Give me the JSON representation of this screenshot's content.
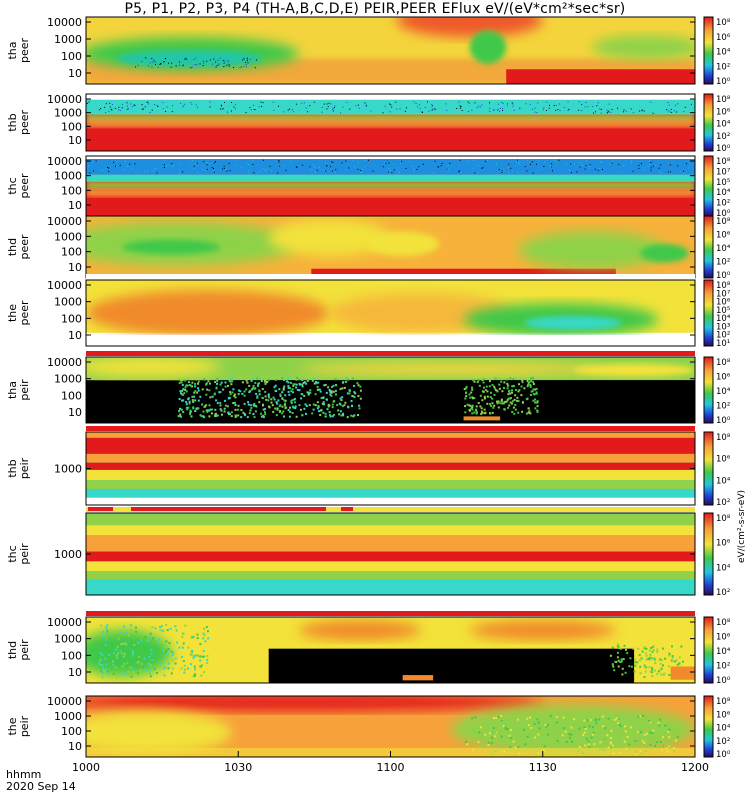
{
  "title": "P5, P1, P2, P3, P4 (TH-A,B,C,D,E) PEIR,PEER EFlux eV/(eV*cm²*sec*sr)",
  "footer": {
    "axis_label": "hhmm",
    "date": "2020 Sep 14"
  },
  "colors": {
    "red": "#e31a1c",
    "orange": "#f6a13a",
    "yellow": "#f2e23a",
    "green": "#3fc84a",
    "cyan": "#37d8c9",
    "blue": "#1e5fd6",
    "black": "#000000"
  },
  "chart_data": {
    "type": "heatmap",
    "x_axis": {
      "label": "hhmm",
      "date": "2020 Sep 14",
      "range": [
        "1000",
        "1200"
      ],
      "tick_labels": [
        "1000",
        "1030",
        "1100",
        "1130",
        "1200"
      ]
    },
    "colorbar_unit": "eV/(cm²-s-sr-eV)",
    "panels": [
      {
        "probe": "tha",
        "species": "peer",
        "ylabel": "tha\npeer",
        "yscale": "log",
        "ytick_labels": [
          "10000",
          "1000",
          "100",
          "10"
        ],
        "colorbar_ticks": [
          "10⁸",
          "10⁶",
          "10⁴",
          "10²",
          "10⁰"
        ],
        "flags": null
      },
      {
        "probe": "thb",
        "species": "peer",
        "ylabel": "thb\npeer",
        "yscale": "log",
        "ytick_labels": [
          "10000",
          "1000",
          "100",
          "10"
        ],
        "colorbar_ticks": [
          "10⁸",
          "10⁶",
          "10⁴",
          "10²",
          "10⁰"
        ],
        "flags": "white"
      },
      {
        "probe": "thc",
        "species": "peer",
        "ylabel": "thc\npeer",
        "yscale": "log",
        "ytick_labels": [
          "10000",
          "1000",
          "100",
          "10"
        ],
        "colorbar_ticks": [
          "10⁸",
          "10⁷",
          "10⁵",
          "10⁴",
          "10²",
          "10⁰"
        ],
        "flags": null
      },
      {
        "probe": "thd",
        "species": "peer",
        "ylabel": "thd\npeer",
        "yscale": "log",
        "ytick_labels": [
          "10000",
          "1000",
          "100",
          "10"
        ],
        "colorbar_ticks": [
          "10⁸",
          "10⁶",
          "10⁴",
          "10²",
          "10⁰"
        ],
        "flags": null
      },
      {
        "probe": "the",
        "species": "peer",
        "ylabel": "the\npeer",
        "yscale": "log",
        "ytick_labels": [
          "10000",
          "1000",
          "100",
          "10"
        ],
        "colorbar_ticks": [
          "10⁸",
          "10⁷",
          "10⁶",
          "10⁵",
          "10⁴",
          "10³",
          "10²",
          "10¹"
        ],
        "flags": "white"
      },
      {
        "probe": "tha",
        "species": "peir",
        "ylabel": "tha\npeir",
        "yscale": "log",
        "ytick_labels": [
          "10000",
          "1000",
          "100",
          "10"
        ],
        "colorbar_ticks": [
          "10⁸",
          "10⁶",
          "10⁴",
          "10²",
          "10⁰"
        ],
        "flags": "red"
      },
      {
        "probe": "thb",
        "species": "peir",
        "ylabel": "thb\npeir",
        "yscale": "log",
        "ytick_labels": [
          "1000"
        ],
        "colorbar_ticks": [
          "10⁸",
          "10⁶",
          "10⁴",
          "10²"
        ],
        "flags": "red"
      },
      {
        "probe": "thc",
        "species": "peir",
        "ylabel": "thc\npeir",
        "yscale": "log",
        "ytick_labels": [
          "1000"
        ],
        "colorbar_ticks": [
          "10⁸",
          "10⁶",
          "10⁴",
          "10²"
        ],
        "flags": "red-yellow"
      },
      {
        "probe": "thd",
        "species": "peir",
        "ylabel": "thd\npeir",
        "yscale": "log",
        "ytick_labels": [
          "10000",
          "1000",
          "100",
          "10"
        ],
        "colorbar_ticks": [
          "10⁸",
          "10⁶",
          "10⁴",
          "10²",
          "10⁰"
        ],
        "flags": "red"
      },
      {
        "probe": "the",
        "species": "peir",
        "ylabel": "the\npeir",
        "yscale": "log",
        "ytick_labels": [
          "10000",
          "1000",
          "100",
          "10"
        ],
        "colorbar_ticks": [
          "10⁸",
          "10⁶",
          "10⁴",
          "10²",
          "10⁰"
        ],
        "flags": null
      }
    ]
  }
}
